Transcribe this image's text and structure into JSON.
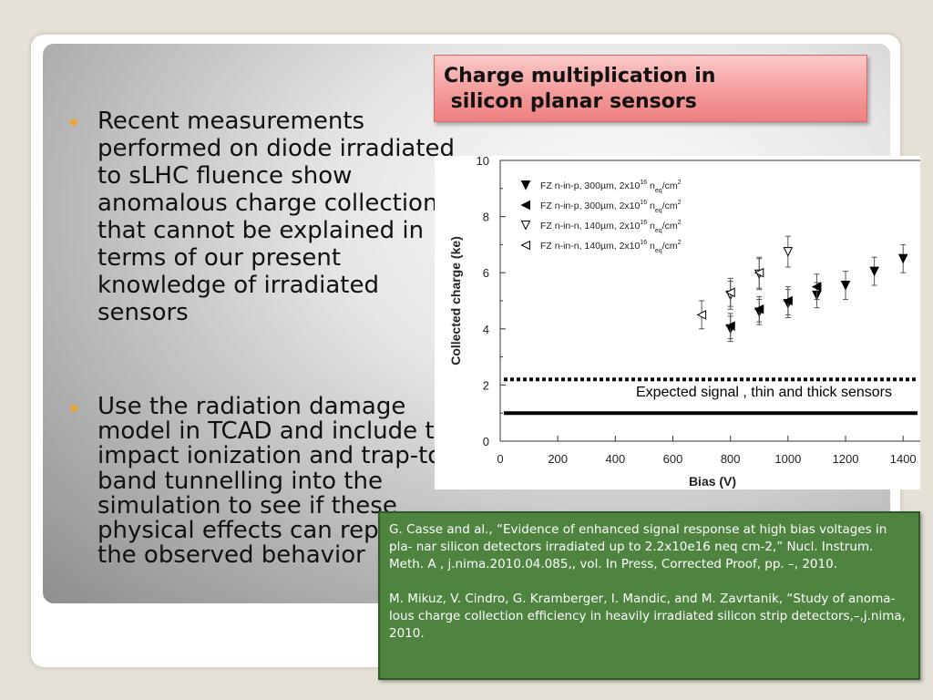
{
  "bullets": [
    "Recent measurements performed on diode irradiated to sLHC fluence show anomalous charge collection that cannot be explained in terms of our present knowledge of irradiated sensors",
    "Use the radiation damage model in TCAD and include the impact ionization and trap-to-band tunnelling into the simulation to see if these physical effects can reproduce the observed behavior"
  ],
  "title_box": {
    "line1": "Charge multiplication in",
    "line2": " silicon planar sensors"
  },
  "chart_data": {
    "type": "scatter",
    "xlabel": "Bias (V)",
    "ylabel": "Collected charge (ke)",
    "xlim": [
      0,
      1450
    ],
    "ylim": [
      0,
      10
    ],
    "xticks": [
      "0",
      "200",
      "400",
      "600",
      "800",
      "1000",
      "1200",
      "1400"
    ],
    "yticks": [
      "0",
      "2",
      "4",
      "6",
      "8",
      "10"
    ],
    "legend_position": "top-left",
    "series": [
      {
        "name": "FZ n-in-p, 300µm, 2x10",
        "exp": "16",
        "unit_tail": " n",
        "sub": "eq",
        "unit_end": "/cm",
        "sup": "2",
        "marker": "down-filled",
        "x": [
          800,
          900,
          1000,
          1100,
          1200,
          1300,
          1400
        ],
        "y": [
          4.0,
          4.6,
          4.9,
          5.2,
          5.55,
          6.05,
          6.5
        ],
        "err": [
          0.45,
          0.45,
          0.5,
          0.45,
          0.5,
          0.5,
          0.5
        ]
      },
      {
        "name": "FZ n-in-p, 300µm, 2x10",
        "exp": "16",
        "unit_tail": " n",
        "sub": "eq",
        "unit_end": "/cm",
        "sup": "2",
        "marker": "left-filled",
        "x": [
          800,
          900,
          1000,
          1100
        ],
        "y": [
          4.1,
          4.7,
          5.0,
          5.5
        ],
        "err": [
          0.45,
          0.45,
          0.5,
          0.45
        ]
      },
      {
        "name": "FZ n-in-n, 140µm, 2x10",
        "exp": "16",
        "unit_tail": " n",
        "sub": "eq",
        "unit_end": "/cm",
        "sup": "2",
        "marker": "down-open",
        "x": [
          800,
          900,
          1000
        ],
        "y": [
          5.2,
          5.95,
          6.75
        ],
        "err": [
          0.5,
          0.55,
          0.55
        ]
      },
      {
        "name": "FZ n-in-n, 140µm, 2x10",
        "exp": "16",
        "unit_tail": " n",
        "sub": "eq",
        "unit_end": "/cm",
        "sup": "2",
        "marker": "left-open",
        "x": [
          700,
          800,
          900
        ],
        "y": [
          4.5,
          5.3,
          6.0
        ],
        "err": [
          0.5,
          0.5,
          0.55
        ]
      }
    ],
    "reference_lines": [
      {
        "y": 2.2,
        "style": "dotted"
      },
      {
        "y": 1.0,
        "style": "solid"
      }
    ],
    "annotation": "Expected signal , thin and thick sensors"
  },
  "references": [
    "G. Casse and al., “Evidence of enhanced signal response at high bias voltages in pla- nar silicon detectors irradiated up to 2.2x10e16 neq cm-2,” Nucl. Instrum. Meth. A , j.nima.2010.04.085,, vol. In Press, Corrected Proof, pp. –, 2010.",
    "M. Mikuz, V. Cindro, G. Kramberger, I. Mandic, and M. Zavrtanik, “Study of anoma- lous charge collection efficiency in heavily irradiated silicon strip detectors,–,j.nima, 2010."
  ],
  "colors": {
    "bullet": "#e8a33c",
    "title_box": "#f39b9b",
    "reference_box": "#4e8340"
  }
}
